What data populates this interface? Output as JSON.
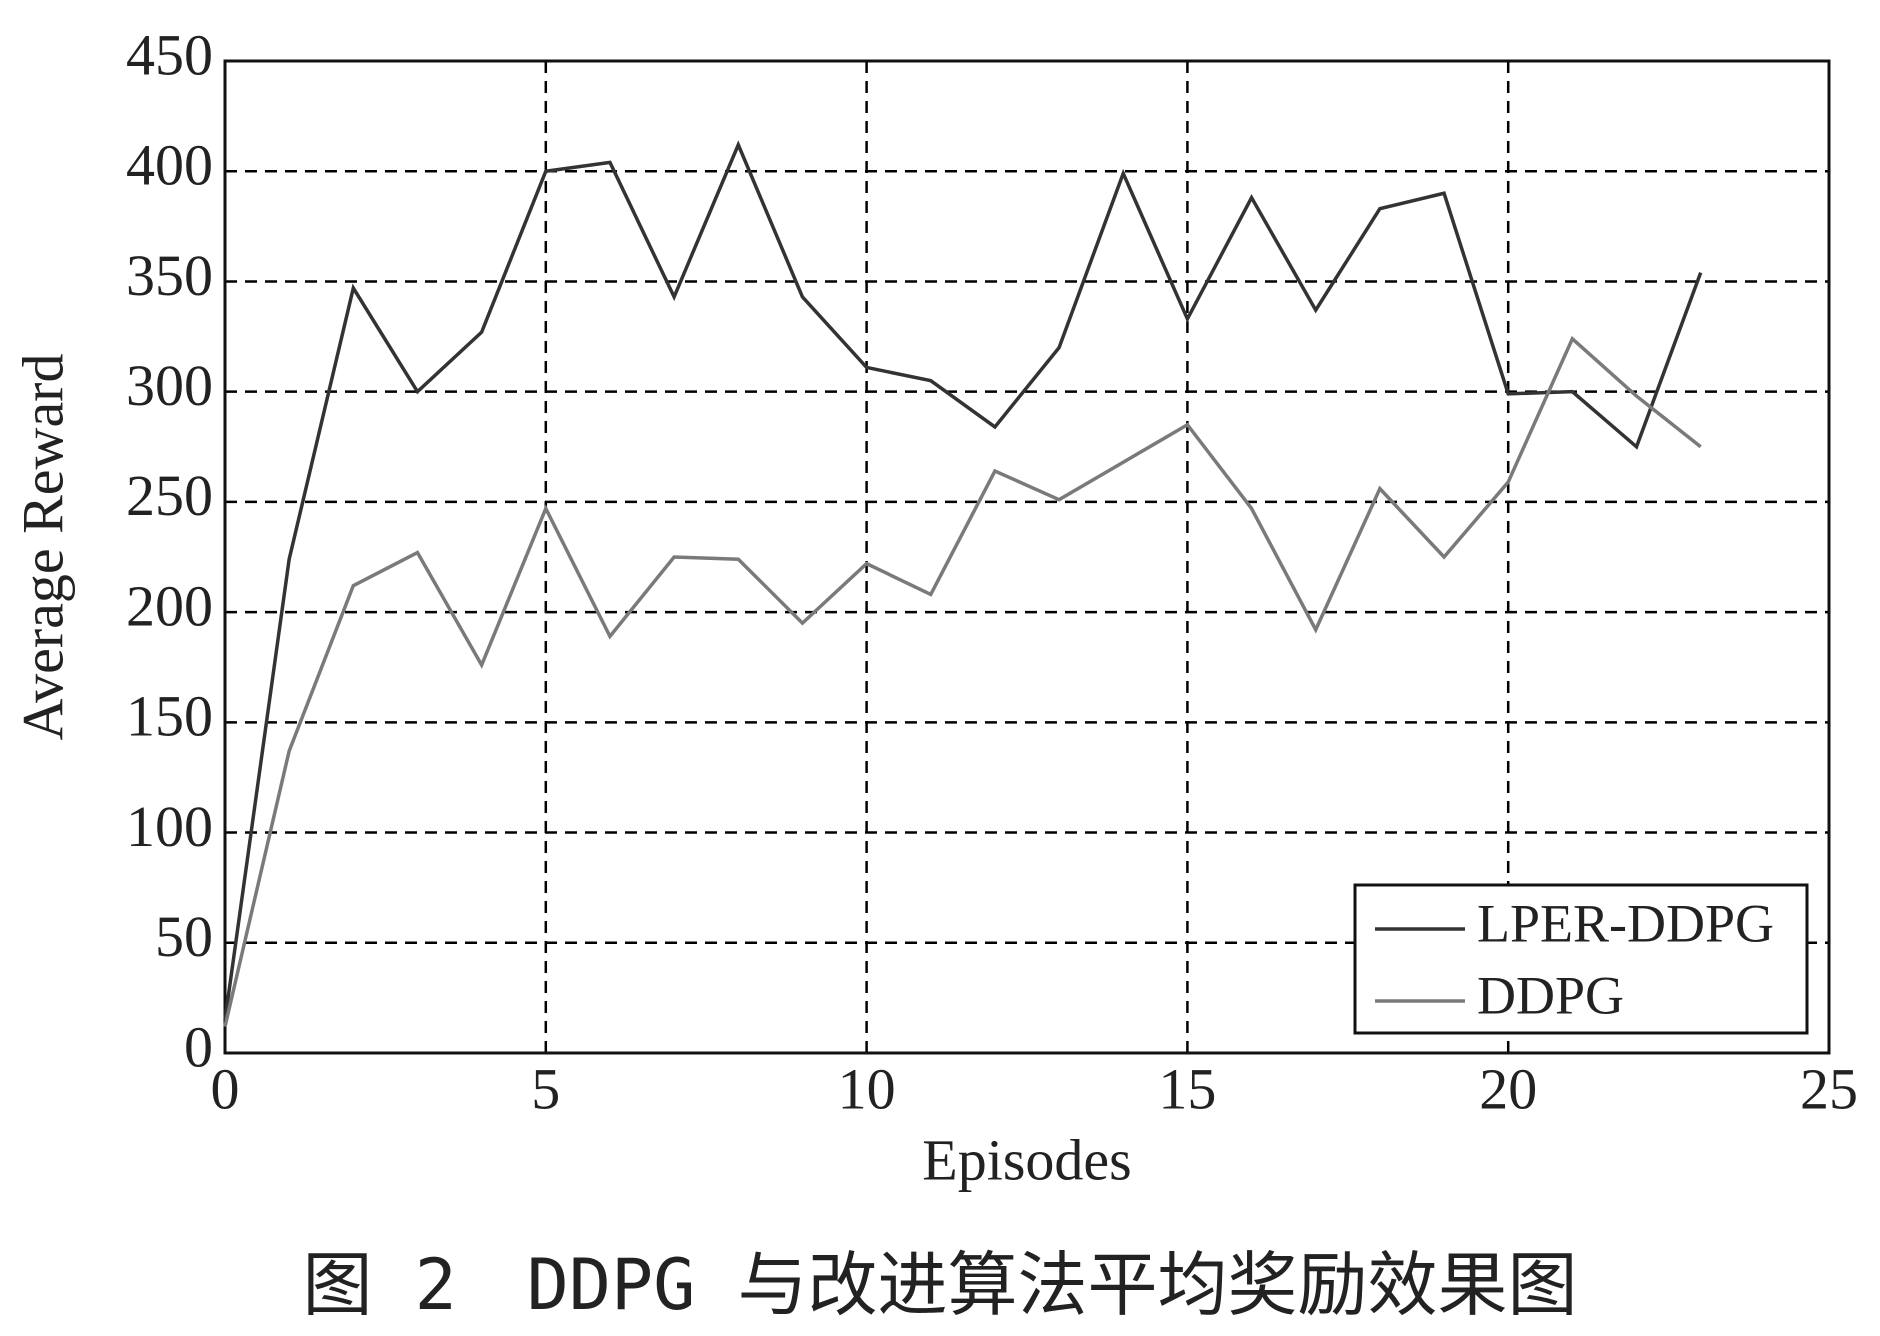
{
  "chart_data": {
    "type": "line",
    "x_label": "Episodes",
    "y_label": "Average Reward",
    "caption": "图 2　DDPG 与改进算法平均奖励效果图",
    "x": [
      0,
      1,
      2,
      3,
      4,
      5,
      6,
      7,
      8,
      9,
      10,
      11,
      12,
      13,
      14,
      15,
      16,
      17,
      18,
      19,
      20,
      21,
      22,
      23
    ],
    "series": [
      {
        "name": "LPER-DDPG",
        "color": "#333333",
        "values": [
          15,
          224,
          347,
          300,
          327,
          400,
          404,
          343,
          412,
          343,
          311,
          305,
          284,
          320,
          399,
          333,
          388,
          337,
          383,
          390,
          299,
          300,
          275,
          354
        ]
      },
      {
        "name": "DDPG",
        "color": "#7a7a7a",
        "values": [
          12,
          137,
          212,
          227,
          176,
          247,
          189,
          225,
          224,
          195,
          222,
          208,
          264,
          251,
          268,
          285,
          247,
          192,
          256,
          225,
          259,
          324,
          298,
          275
        ]
      }
    ],
    "xlim": [
      0,
      25
    ],
    "xticks": [
      0,
      5,
      10,
      15,
      20,
      25
    ],
    "ylim": [
      0,
      450
    ],
    "yticks": [
      0,
      50,
      100,
      150,
      200,
      250,
      300,
      350,
      400,
      450
    ],
    "grid": true,
    "legend": "lower right"
  }
}
